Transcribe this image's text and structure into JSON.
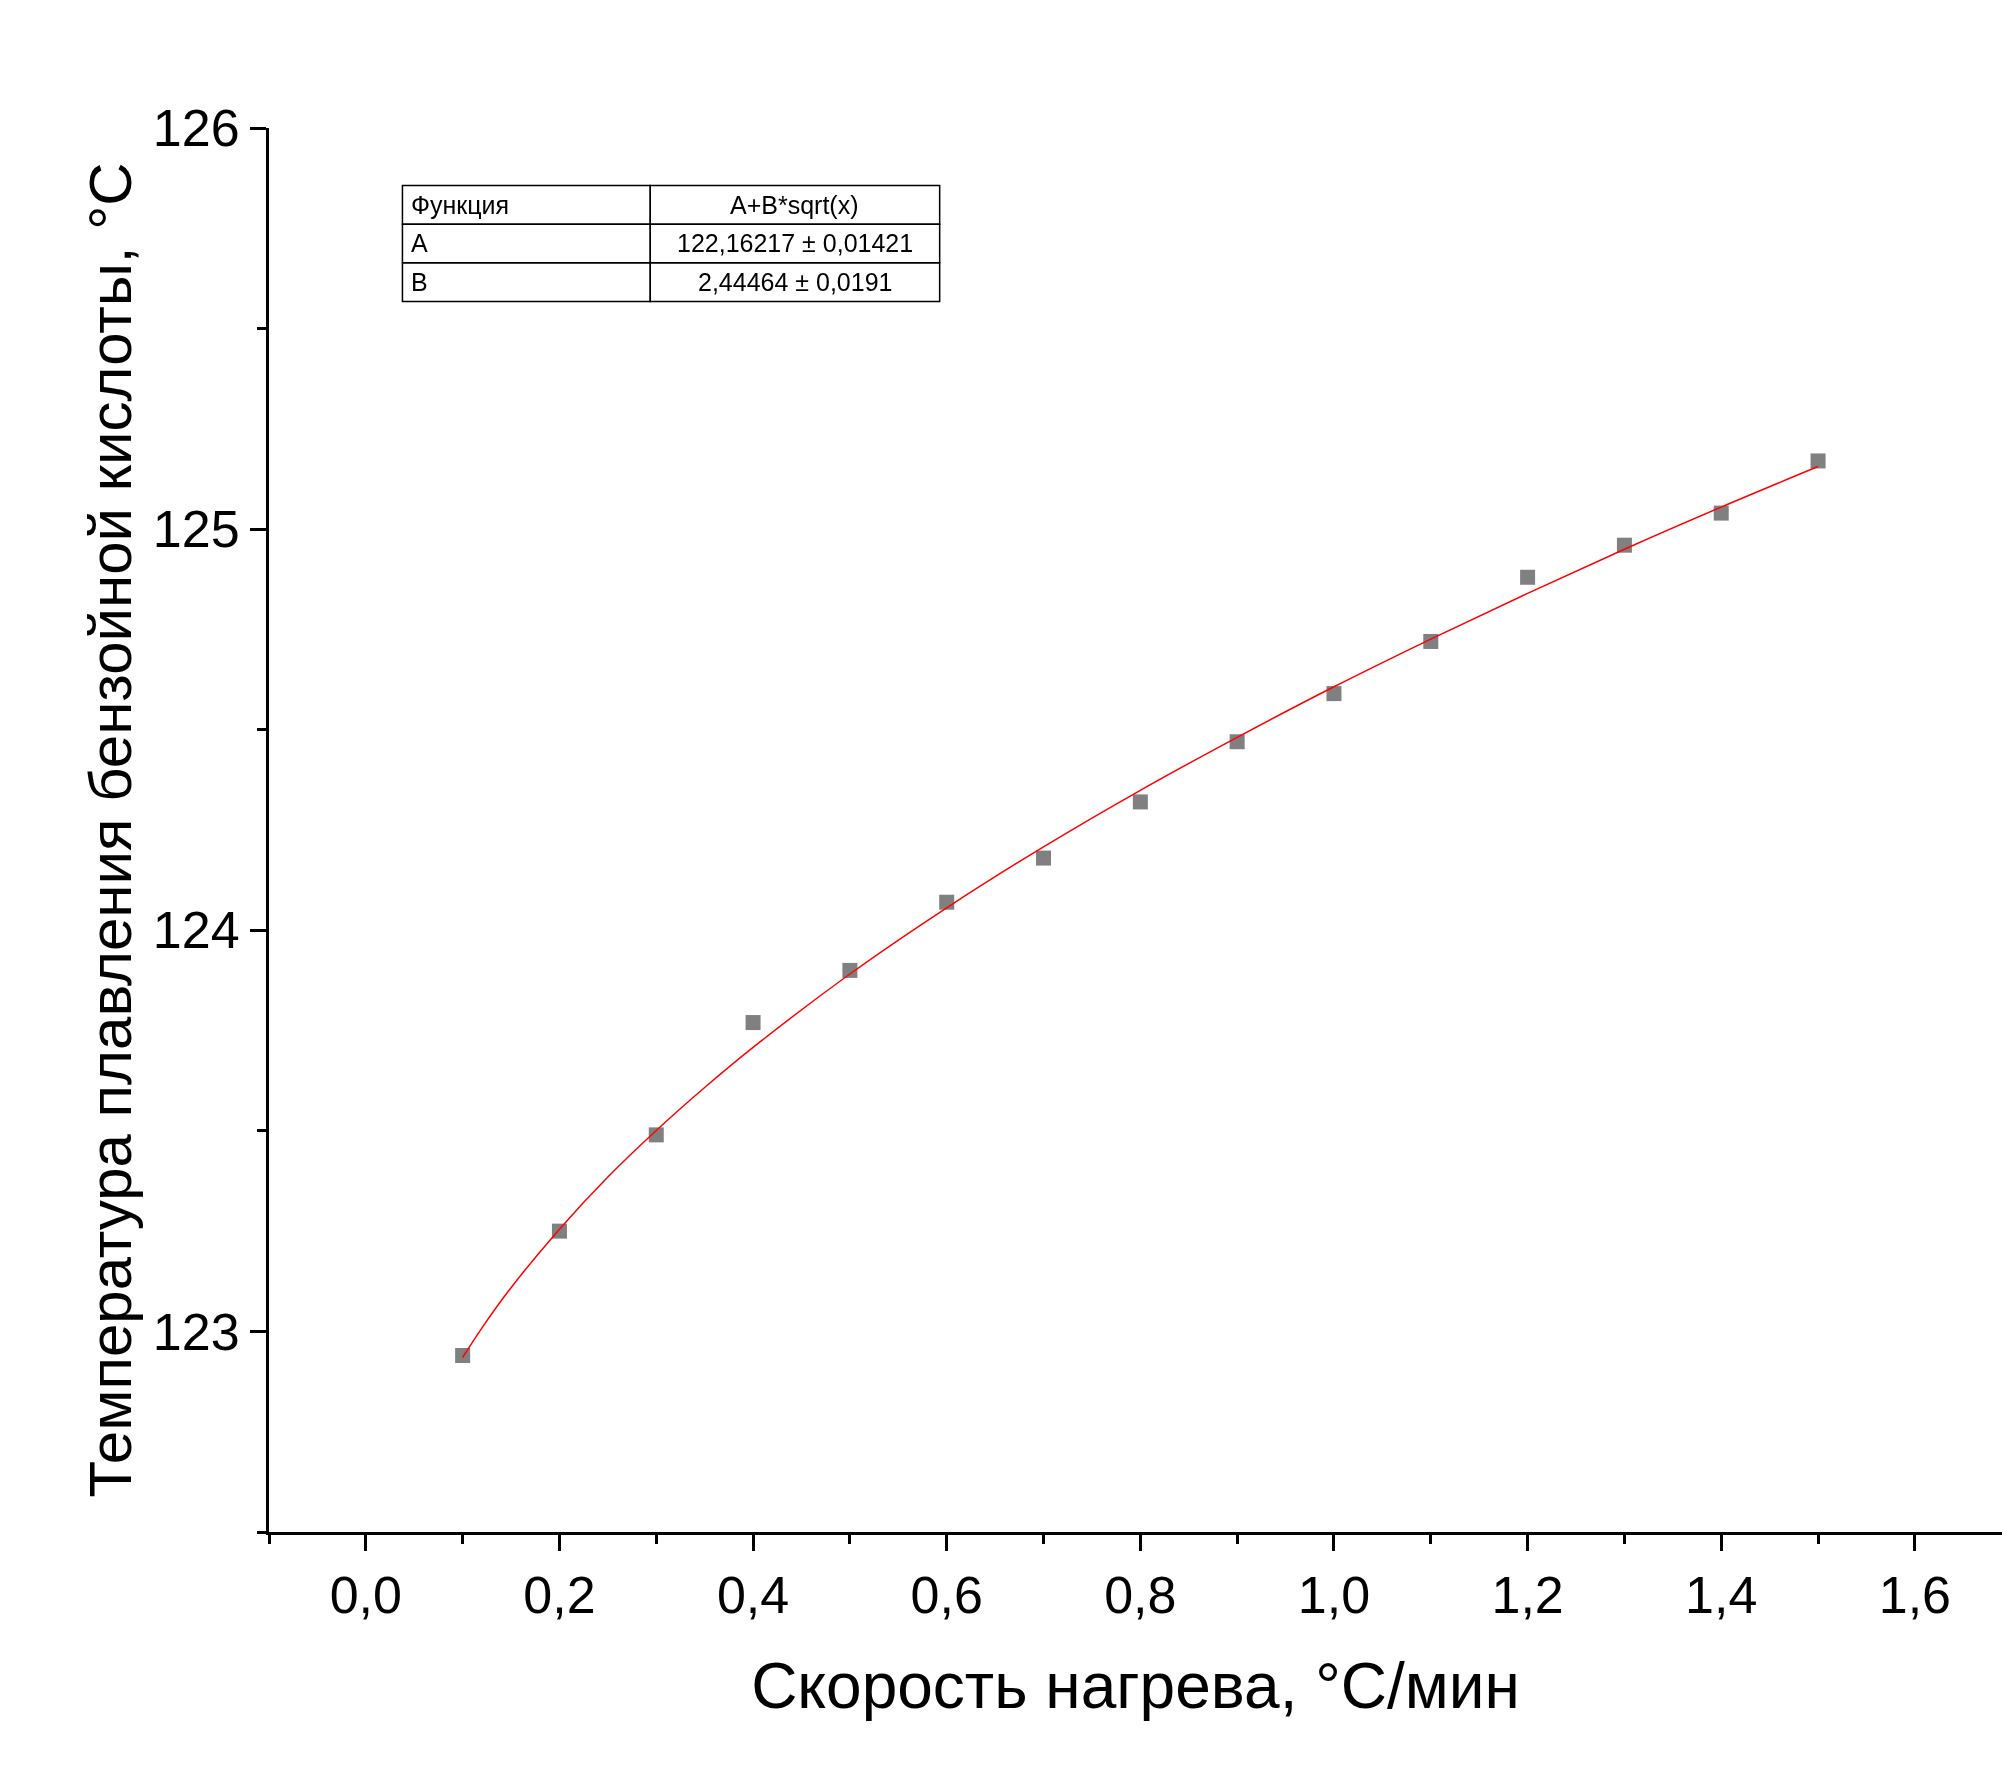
{
  "chart_data": {
    "type": "scatter",
    "xlabel": "Скорость нагрева, °C/мин",
    "ylabel": "Температура плавления бензойной кислоты, °C",
    "annotations": [
      "Функция",
      "A+B*sqrt(x)",
      "A",
      "122,16217 ± 0,01421",
      "B",
      "2,44464 ± 0,0191"
    ],
    "xlim": [
      -0.1,
      1.69
    ],
    "xticks": [
      {
        "value": -0.1,
        "label": null
      },
      "0,0",
      {
        "value": 0.1,
        "label": null
      },
      {
        "value": 0.2,
        "label": "0,2"
      },
      {
        "value": 0.3,
        "label": null
      },
      {
        "value": 0.4,
        "label": "0,4"
      },
      {
        "value": 0.5,
        "label": null
      },
      {
        "value": 0.6,
        "label": "0,6"
      },
      {
        "value": 0.7,
        "label": null
      },
      {
        "value": 0.8,
        "label": "0,8"
      },
      {
        "value": 0.9,
        "label": null
      },
      {
        "value": 1.0,
        "label": "1,0"
      },
      {
        "value": 1.1,
        "label": null
      },
      {
        "value": 1.2,
        "label": "1,2"
      },
      {
        "value": 1.3,
        "label": null
      },
      {
        "value": 1.4,
        "label": "1,4"
      },
      {
        "value": 1.5,
        "label": null
      },
      {
        "value": 1.6,
        "label": "1,6"
      }
    ],
    "ylim": [
      122.5,
      126
    ],
    "yticks": [
      {
        "value": 122.5,
        "label": null
      },
      123,
      {
        "value": 123.5,
        "label": null
      },
      124,
      {
        "value": 124.5,
        "label": null
      },
      125,
      {
        "value": 125.5,
        "label": null
      },
      126
    ],
    "legend": false,
    "marker": "square",
    "series": [
      {
        "color": "#808080",
        "x": [
          0.1,
          0.2,
          0.3,
          0.4,
          0.5,
          0.6,
          0.7,
          0.8,
          0.9,
          1.0,
          1.1,
          1.2,
          1.3,
          1.4,
          1.5
        ],
        "values": [
          122.94,
          123.25,
          123.49,
          123.77,
          123.9,
          124.07,
          124.18,
          124.32,
          124.47,
          124.59,
          124.72,
          124.88,
          124.96,
          125.04,
          125.17
        ]
      },
      {
        "type": "line",
        "marker": "none",
        "color": "#ff0000",
        "x": [
          0.1,
          0.12,
          0.15,
          0.2,
          0.25,
          0.3,
          0.35,
          0.4,
          0.5,
          0.6,
          0.7,
          0.8,
          0.9,
          1.0,
          1.1,
          1.2,
          1.3,
          1.4,
          1.5
        ],
        "values": [
          122.935,
          123.009,
          123.109,
          123.255,
          123.385,
          123.501,
          123.608,
          123.708,
          123.891,
          124.056,
          124.208,
          124.349,
          124.481,
          124.607,
          124.726,
          124.84,
          124.95,
          125.055,
          125.156
        ]
      }
    ]
  }
}
